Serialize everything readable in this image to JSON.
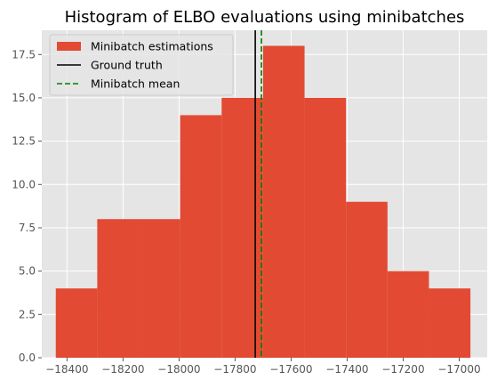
{
  "chart_data": {
    "type": "bar",
    "title": "Histogram of ELBO evaluations using minibatches",
    "xlabel": "",
    "ylabel": "",
    "xlim": [
      -18490,
      -16900
    ],
    "ylim": [
      0,
      18.9
    ],
    "bins": [
      {
        "x0": -18440,
        "x1": -18292,
        "count": 4
      },
      {
        "x0": -18292,
        "x1": -18144,
        "count": 8
      },
      {
        "x0": -18144,
        "x1": -17996,
        "count": 8
      },
      {
        "x0": -17996,
        "x1": -17848,
        "count": 14
      },
      {
        "x0": -17848,
        "x1": -17700,
        "count": 15
      },
      {
        "x0": -17700,
        "x1": -17552,
        "count": 18
      },
      {
        "x0": -17552,
        "x1": -17404,
        "count": 15
      },
      {
        "x0": -17404,
        "x1": -17256,
        "count": 9
      },
      {
        "x0": -17256,
        "x1": -17108,
        "count": 5
      },
      {
        "x0": -17108,
        "x1": -16960,
        "count": 4
      }
    ],
    "x_ticks": [
      -18400,
      -18200,
      -18000,
      -17800,
      -17600,
      -17400,
      -17200,
      -17000
    ],
    "x_tick_labels": [
      "−18400",
      "−18200",
      "−18000",
      "−17800",
      "−17600",
      "−17400",
      "−17200",
      "−17000"
    ],
    "y_ticks": [
      0,
      2.5,
      5,
      7.5,
      10,
      12.5,
      15,
      17.5
    ],
    "y_tick_labels": [
      "0.0",
      "2.5",
      "5.0",
      "7.5",
      "10.0",
      "12.5",
      "15.0",
      "17.5"
    ],
    "ground_truth": -17728,
    "minibatch_mean": -17706,
    "grid": true,
    "legend_position": "top-left",
    "legend": [
      {
        "label": "Minibatch estimations",
        "kind": "patch",
        "color": "#E24A33"
      },
      {
        "label": "Ground truth",
        "kind": "line",
        "color": "#000000"
      },
      {
        "label": "Minibatch mean",
        "kind": "dashed-line",
        "color": "#008000"
      }
    ],
    "colors": {
      "bar": "#E24A33",
      "background": "#E5E5E5",
      "grid": "#FFFFFF",
      "ground_truth": "#000000",
      "minibatch_mean": "#008000"
    }
  }
}
